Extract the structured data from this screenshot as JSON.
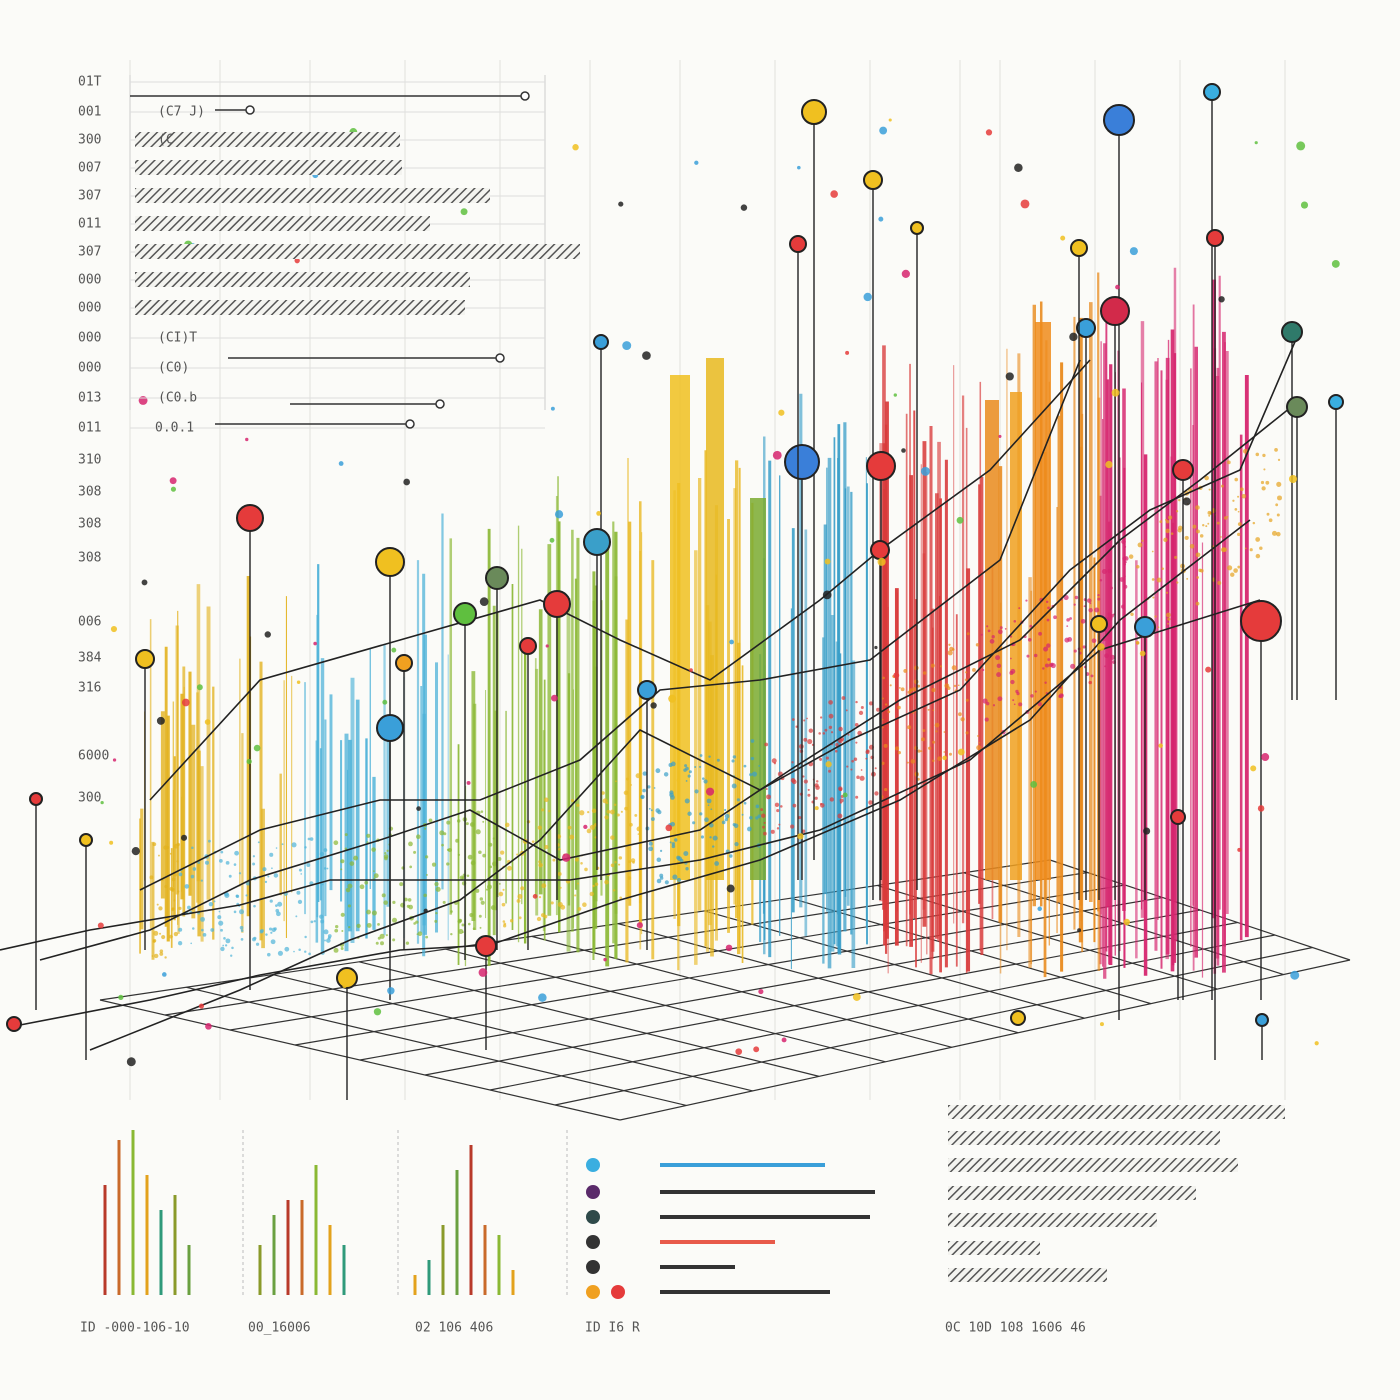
{
  "left_labels": [
    "01T",
    "001",
    "300",
    "007",
    "307",
    "011",
    "307",
    "000",
    "000",
    "000",
    "000",
    "013",
    "011",
    "310",
    "308",
    "308",
    "308",
    "006",
    "384",
    "316",
    "6000",
    "300"
  ],
  "panel_labels": [
    "(C7 J)",
    "(C",
    "(CI)T",
    "(C0)",
    "(C0.b",
    "0.0.1"
  ],
  "bottom_captions": [
    "ID -000-106-10",
    "00_16006",
    "02 106 406",
    "ID I6 R",
    "0C 10D 108 1606 46"
  ]
}
